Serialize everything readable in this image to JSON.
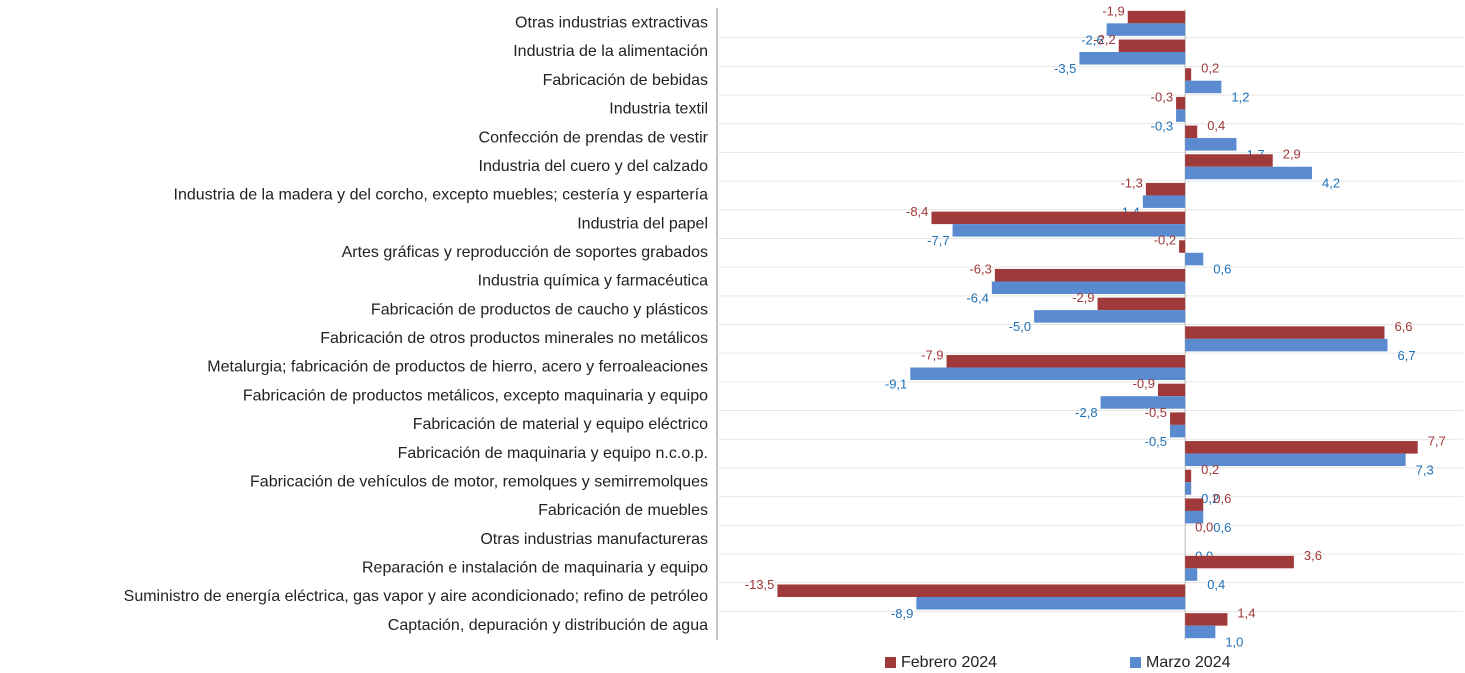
{
  "chart_data": {
    "type": "hbar",
    "categories": [
      "Otras industrias extractivas",
      "Industria de la alimentación",
      "Fabricación de bebidas",
      "Industria textil",
      "Confección de prendas de vestir",
      "Industria del cuero y del calzado",
      "Industria de la madera y del corcho, excepto muebles; cestería y espartería",
      "Industria del papel",
      "Artes gráficas y reproducción de soportes grabados",
      "Industria química y farmacéutica",
      "Fabricación de productos de caucho y plásticos",
      "Fabricación de otros productos minerales no metálicos",
      "Metalurgia; fabricación de productos de hierro, acero y ferroaleaciones",
      "Fabricación de productos metálicos, excepto maquinaria y equipo",
      "Fabricación de material y equipo eléctrico",
      "Fabricación de maquinaria y equipo n.c.o.p.",
      "Fabricación de vehículos de motor, remolques y semirremolques",
      "Fabricación de muebles",
      "Otras industrias manufactureras",
      "Reparación e instalación de maquinaria y equipo",
      "Suministro de energía eléctrica, gas vapor y aire acondicionado; refino de petróleo",
      "Captación, depuración y distribución de agua"
    ],
    "series": [
      {
        "name": "Febrero 2024",
        "color": "#a0393a",
        "label_color": "#a0393a",
        "values": [
          -1.9,
          -2.2,
          0.2,
          -0.3,
          0.4,
          2.9,
          -1.3,
          -8.4,
          -0.2,
          -6.3,
          -2.9,
          6.6,
          -7.9,
          -0.9,
          -0.5,
          7.7,
          0.2,
          0.6,
          0.0,
          3.6,
          -13.5,
          1.4
        ],
        "value_labels": [
          "-1,9",
          "-2,2",
          "0,2",
          "-0,3",
          "0,4",
          "2,9",
          "-1,3",
          "-8,4",
          "-0,2",
          "-6,3",
          "-2,9",
          "6,6",
          "-7,9",
          "-0,9",
          "-0,5",
          "7,7",
          "0,2",
          "0,6",
          "0,0",
          "3,6",
          "-13,5",
          "1,4"
        ]
      },
      {
        "name": "Marzo 2024",
        "color": "#5a8ad0",
        "label_color": "#1f72b8",
        "values": [
          -2.6,
          -3.5,
          1.2,
          -0.3,
          1.7,
          4.2,
          -1.4,
          -7.7,
          0.6,
          -6.4,
          -5.0,
          6.7,
          -9.1,
          -2.8,
          -0.5,
          7.3,
          0.2,
          0.6,
          0.0,
          0.4,
          -8.9,
          1.0
        ],
        "value_labels": [
          "-2,6",
          "-3,5",
          "1,2",
          "-0,3",
          "1,7",
          "4,2",
          "-1,4",
          "-7,7",
          "0,6",
          "-6,4",
          "-5,0",
          "6,7",
          "-9,1",
          "-2,8",
          "-0,5",
          "7,3",
          "0,2",
          "0,6",
          "0,0",
          "0,4",
          "-8,9",
          "1,0"
        ]
      }
    ],
    "xlim": [
      -15.5,
      9.2
    ],
    "legend": "bottom"
  }
}
